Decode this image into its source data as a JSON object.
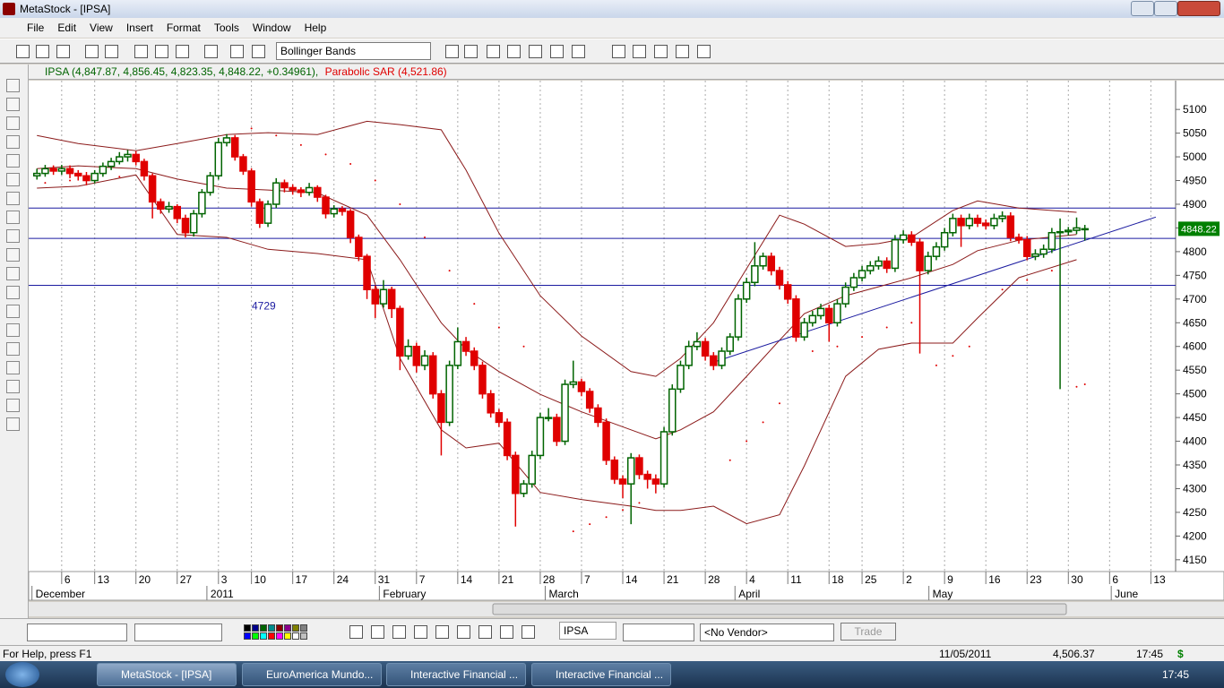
{
  "window": {
    "title": "MetaStock - [IPSA]"
  },
  "menu": [
    "File",
    "Edit",
    "View",
    "Insert",
    "Format",
    "Tools",
    "Window",
    "Help"
  ],
  "toolbar": {
    "indicator": "Bollinger Bands"
  },
  "chart_header": {
    "symbol_text": "IPSA (4,847.87, 4,856.45, 4,823.35, 4,848.22, +0.34961),",
    "indicator_text": "Parabolic SAR (4,521.86)"
  },
  "chart_data": {
    "type": "candlestick",
    "series": [
      {
        "name": "IPSA",
        "up_color": "#006400",
        "down_color": "#e00000",
        "values": [
          [
            4960,
            4975,
            4952,
            4965
          ],
          [
            4965,
            4983,
            4958,
            4975
          ],
          [
            4975,
            4982,
            4962,
            4970
          ],
          [
            4970,
            4983,
            4962,
            4975
          ],
          [
            4975,
            4982,
            4955,
            4965
          ],
          [
            4965,
            4972,
            4950,
            4960
          ],
          [
            4960,
            4968,
            4940,
            4950
          ],
          [
            4950,
            4972,
            4944,
            4965
          ],
          [
            4965,
            4988,
            4958,
            4980
          ],
          [
            4980,
            4998,
            4972,
            4990
          ],
          [
            4990,
            5010,
            4984,
            5000
          ],
          [
            5000,
            5015,
            4990,
            5005
          ],
          [
            5005,
            5012,
            4982,
            4990
          ],
          [
            4990,
            4996,
            4950,
            4960
          ],
          [
            4960,
            4965,
            4870,
            4905
          ],
          [
            4905,
            4912,
            4880,
            4890
          ],
          [
            4890,
            4905,
            4882,
            4895
          ],
          [
            4895,
            4900,
            4860,
            4870
          ],
          [
            4870,
            4878,
            4830,
            4840
          ],
          [
            4840,
            4888,
            4832,
            4880
          ],
          [
            4880,
            4932,
            4872,
            4925
          ],
          [
            4925,
            4968,
            4918,
            4960
          ],
          [
            4960,
            5040,
            4952,
            5030
          ],
          [
            5030,
            5048,
            5022,
            5040
          ],
          [
            5040,
            5046,
            4992,
            5000
          ],
          [
            5000,
            5006,
            4962,
            4970
          ],
          [
            4970,
            4976,
            4895,
            4905
          ],
          [
            4905,
            4912,
            4850,
            4860
          ],
          [
            4860,
            4908,
            4852,
            4900
          ],
          [
            4900,
            4955,
            4892,
            4945
          ],
          [
            4945,
            4952,
            4925,
            4935
          ],
          [
            4935,
            4942,
            4920,
            4930
          ],
          [
            4930,
            4936,
            4915,
            4925
          ],
          [
            4925,
            4945,
            4918,
            4935
          ],
          [
            4935,
            4940,
            4905,
            4915
          ],
          [
            4915,
            4920,
            4870,
            4880
          ],
          [
            4880,
            4898,
            4872,
            4890
          ],
          [
            4890,
            4896,
            4876,
            4885
          ],
          [
            4885,
            4890,
            4818,
            4830
          ],
          [
            4830,
            4836,
            4780,
            4790
          ],
          [
            4790,
            4795,
            4700,
            4720
          ],
          [
            4720,
            4728,
            4660,
            4690
          ],
          [
            4690,
            4740,
            4682,
            4720
          ],
          [
            4720,
            4726,
            4660,
            4680
          ],
          [
            4680,
            4686,
            4550,
            4580
          ],
          [
            4580,
            4615,
            4572,
            4600
          ],
          [
            4600,
            4608,
            4545,
            4560
          ],
          [
            4560,
            4592,
            4550,
            4580
          ],
          [
            4580,
            4588,
            4490,
            4500
          ],
          [
            4500,
            4508,
            4370,
            4440
          ],
          [
            4440,
            4570,
            4432,
            4560
          ],
          [
            4560,
            4640,
            4552,
            4610
          ],
          [
            4610,
            4620,
            4580,
            4590
          ],
          [
            4590,
            4598,
            4550,
            4560
          ],
          [
            4560,
            4568,
            4490,
            4500
          ],
          [
            4500,
            4508,
            4450,
            4460
          ],
          [
            4460,
            4468,
            4430,
            4440
          ],
          [
            4440,
            4448,
            4360,
            4370
          ],
          [
            4370,
            4378,
            4220,
            4290
          ],
          [
            4290,
            4318,
            4282,
            4310
          ],
          [
            4310,
            4380,
            4302,
            4370
          ],
          [
            4370,
            4460,
            4362,
            4450
          ],
          [
            4450,
            4470,
            4442,
            4450
          ],
          [
            4450,
            4458,
            4390,
            4400
          ],
          [
            4400,
            4530,
            4392,
            4520
          ],
          [
            4520,
            4570,
            4512,
            4525
          ],
          [
            4525,
            4532,
            4495,
            4505
          ],
          [
            4505,
            4512,
            4460,
            4470
          ],
          [
            4470,
            4478,
            4430,
            4440
          ],
          [
            4440,
            4448,
            4350,
            4360
          ],
          [
            4360,
            4368,
            4310,
            4320
          ],
          [
            4320,
            4328,
            4280,
            4310
          ],
          [
            4310,
            4375,
            4225,
            4365
          ],
          [
            4365,
            4372,
            4320,
            4330
          ],
          [
            4330,
            4338,
            4300,
            4320
          ],
          [
            4320,
            4330,
            4290,
            4310
          ],
          [
            4310,
            4430,
            4302,
            4420
          ],
          [
            4420,
            4520,
            4412,
            4510
          ],
          [
            4510,
            4570,
            4502,
            4560
          ],
          [
            4560,
            4612,
            4552,
            4600
          ],
          [
            4600,
            4630,
            4592,
            4610
          ],
          [
            4610,
            4618,
            4570,
            4580
          ],
          [
            4580,
            4588,
            4550,
            4560
          ],
          [
            4560,
            4598,
            4552,
            4590
          ],
          [
            4590,
            4628,
            4582,
            4620
          ],
          [
            4620,
            4710,
            4612,
            4700
          ],
          [
            4700,
            4745,
            4692,
            4735
          ],
          [
            4735,
            4820,
            4727,
            4770
          ],
          [
            4770,
            4798,
            4762,
            4790
          ],
          [
            4790,
            4798,
            4750,
            4760
          ],
          [
            4760,
            4768,
            4720,
            4730
          ],
          [
            4730,
            4738,
            4690,
            4700
          ],
          [
            4700,
            4708,
            4610,
            4620
          ],
          [
            4620,
            4660,
            4612,
            4650
          ],
          [
            4650,
            4675,
            4642,
            4665
          ],
          [
            4665,
            4690,
            4657,
            4680
          ],
          [
            4680,
            4688,
            4610,
            4650
          ],
          [
            4650,
            4700,
            4642,
            4690
          ],
          [
            4690,
            4735,
            4682,
            4725
          ],
          [
            4725,
            4755,
            4717,
            4745
          ],
          [
            4745,
            4770,
            4737,
            4760
          ],
          [
            4760,
            4780,
            4752,
            4770
          ],
          [
            4770,
            4790,
            4762,
            4780
          ],
          [
            4780,
            4788,
            4755,
            4765
          ],
          [
            4765,
            4835,
            4757,
            4825
          ],
          [
            4825,
            4845,
            4817,
            4835
          ],
          [
            4835,
            4843,
            4812,
            4820
          ],
          [
            4820,
            4828,
            4585,
            4760
          ],
          [
            4760,
            4800,
            4752,
            4790
          ],
          [
            4790,
            4820,
            4782,
            4810
          ],
          [
            4810,
            4850,
            4802,
            4840
          ],
          [
            4840,
            4880,
            4832,
            4870
          ],
          [
            4870,
            4878,
            4810,
            4855
          ],
          [
            4855,
            4880,
            4847,
            4870
          ],
          [
            4870,
            4878,
            4852,
            4860
          ],
          [
            4860,
            4868,
            4847,
            4855
          ],
          [
            4855,
            4880,
            4847,
            4870
          ],
          [
            4870,
            4885,
            4862,
            4875
          ],
          [
            4875,
            4883,
            4822,
            4830
          ],
          [
            4830,
            4838,
            4817,
            4825
          ],
          [
            4825,
            4833,
            4782,
            4790
          ],
          [
            4790,
            4805,
            4782,
            4795
          ],
          [
            4795,
            4815,
            4787,
            4805
          ],
          [
            4805,
            4850,
            4797,
            4840
          ],
          [
            4840,
            4870,
            4510,
            4842
          ],
          [
            4842,
            4852,
            4834,
            4845
          ],
          [
            4845,
            4872,
            4837,
            4850
          ],
          [
            4847.87,
            4856.45,
            4823.35,
            4848.22
          ]
        ]
      }
    ],
    "bollinger": {
      "color": "#8b1a1a",
      "x": [
        0,
        5,
        12,
        17,
        23,
        28,
        34,
        40,
        44,
        49,
        52,
        56,
        61,
        66,
        72,
        75,
        78,
        82,
        86,
        90,
        93,
        98,
        102,
        106,
        111,
        114,
        119,
        126
      ],
      "upper": [
        5045,
        5028,
        5013,
        5028,
        5047,
        5051,
        5047,
        5075,
        5068,
        5057,
        4972,
        4839,
        4707,
        4622,
        4547,
        4537,
        4575,
        4650,
        4764,
        4877,
        4858,
        4811,
        4817,
        4830,
        4887,
        4907,
        4892,
        4883
      ],
      "middle": [
        4975,
        4981,
        4975,
        4953,
        4934,
        4930,
        4924,
        4877,
        4783,
        4650,
        4594,
        4547,
        4499,
        4462,
        4424,
        4405,
        4424,
        4462,
        4537,
        4613,
        4669,
        4707,
        4726,
        4745,
        4773,
        4802,
        4824,
        4836
      ],
      "lower": [
        4934,
        4938,
        4962,
        4836,
        4830,
        4805,
        4796,
        4783,
        4575,
        4424,
        4386,
        4396,
        4292,
        4277,
        4263,
        4254,
        4254,
        4263,
        4226,
        4245,
        4348,
        4537,
        4594,
        4607,
        4607,
        4660,
        4745,
        4783
      ]
    },
    "sar": {
      "color": "#e00000",
      "x": [
        1,
        4,
        7,
        10,
        13,
        26,
        29,
        32,
        35,
        38,
        41,
        44,
        47,
        50,
        53,
        56,
        59,
        65,
        67,
        69,
        71,
        73,
        84,
        86,
        88,
        90,
        94,
        97,
        100,
        103,
        106,
        109,
        111,
        113,
        117,
        120,
        123,
        126,
        127
      ],
      "values": [
        4945,
        4950,
        4955,
        4958,
        4962,
        5060,
        5045,
        5025,
        5005,
        4985,
        4950,
        4900,
        4830,
        4760,
        4690,
        4640,
        4600,
        4210,
        4225,
        4240,
        4255,
        4270,
        4360,
        4400,
        4440,
        4480,
        4590,
        4600,
        4620,
        4640,
        4650,
        4560,
        4580,
        4600,
        4720,
        4740,
        4760,
        4515,
        4520
      ]
    },
    "trendline": {
      "color": "#1a1aa0",
      "x": [
        82.4,
        135.6
      ],
      "values": [
        4569,
        4873
      ]
    },
    "hlines": {
      "color": "#1a1aa0",
      "values": [
        4892,
        4828,
        4729
      ]
    },
    "last_price": 4848.22,
    "last_price_color": "#008000",
    "xlim": [
      -1,
      138
    ],
    "ylim": [
      4127,
      5157
    ],
    "yticks": [
      4150,
      4200,
      4250,
      4300,
      4350,
      4400,
      4450,
      4500,
      4550,
      4600,
      4650,
      4700,
      4750,
      4800,
      4850,
      4900,
      4950,
      5000,
      5050,
      5100
    ],
    "xticks": [
      {
        "value": 3,
        "label": "6"
      },
      {
        "value": 7,
        "label": "13"
      },
      {
        "value": 12,
        "label": "20"
      },
      {
        "value": 17,
        "label": "27"
      },
      {
        "value": 22,
        "label": "3"
      },
      {
        "value": 26,
        "label": "10"
      },
      {
        "value": 31,
        "label": "17"
      },
      {
        "value": 36,
        "label": "24"
      },
      {
        "value": 41,
        "label": "31"
      },
      {
        "value": 46,
        "label": "7"
      },
      {
        "value": 51,
        "label": "14"
      },
      {
        "value": 56,
        "label": "21"
      },
      {
        "value": 61,
        "label": "28"
      },
      {
        "value": 66,
        "label": "7"
      },
      {
        "value": 71,
        "label": "14"
      },
      {
        "value": 76,
        "label": "21"
      },
      {
        "value": 81,
        "label": "28"
      },
      {
        "value": 86,
        "label": "4"
      },
      {
        "value": 91,
        "label": "11"
      },
      {
        "value": 96,
        "label": "18"
      },
      {
        "value": 100,
        "label": "25"
      },
      {
        "value": 105,
        "label": "2"
      },
      {
        "value": 110,
        "label": "9"
      },
      {
        "value": 115,
        "label": "16"
      },
      {
        "value": 120,
        "label": "23"
      },
      {
        "value": 125,
        "label": "30"
      },
      {
        "value": 130,
        "label": "6"
      },
      {
        "value": 135,
        "label": "13"
      }
    ],
    "month_labels": [
      {
        "value": -0.6,
        "label": "December"
      },
      {
        "value": 20.6,
        "label": "2011"
      },
      {
        "value": 41.5,
        "label": "February"
      },
      {
        "value": 61.6,
        "label": "March"
      },
      {
        "value": 84.6,
        "label": "April"
      },
      {
        "value": 108.1,
        "label": "May"
      },
      {
        "value": 130.2,
        "label": "June"
      }
    ],
    "grid": "x"
  },
  "bottom_toolbar": {
    "symbol": "IPSA",
    "vendor": "<No Vendor>",
    "trade": "Trade"
  },
  "status": {
    "help": "For Help, press F1",
    "date": "11/05/2011",
    "value": "4,506.37",
    "time": "17:45",
    "currency": "$"
  },
  "taskbar": {
    "items": [
      "MetaStock - [IPSA]",
      "EuroAmerica Mundo...",
      "Interactive Financial ...",
      "Interactive Financial ..."
    ],
    "clock": "17:45"
  }
}
